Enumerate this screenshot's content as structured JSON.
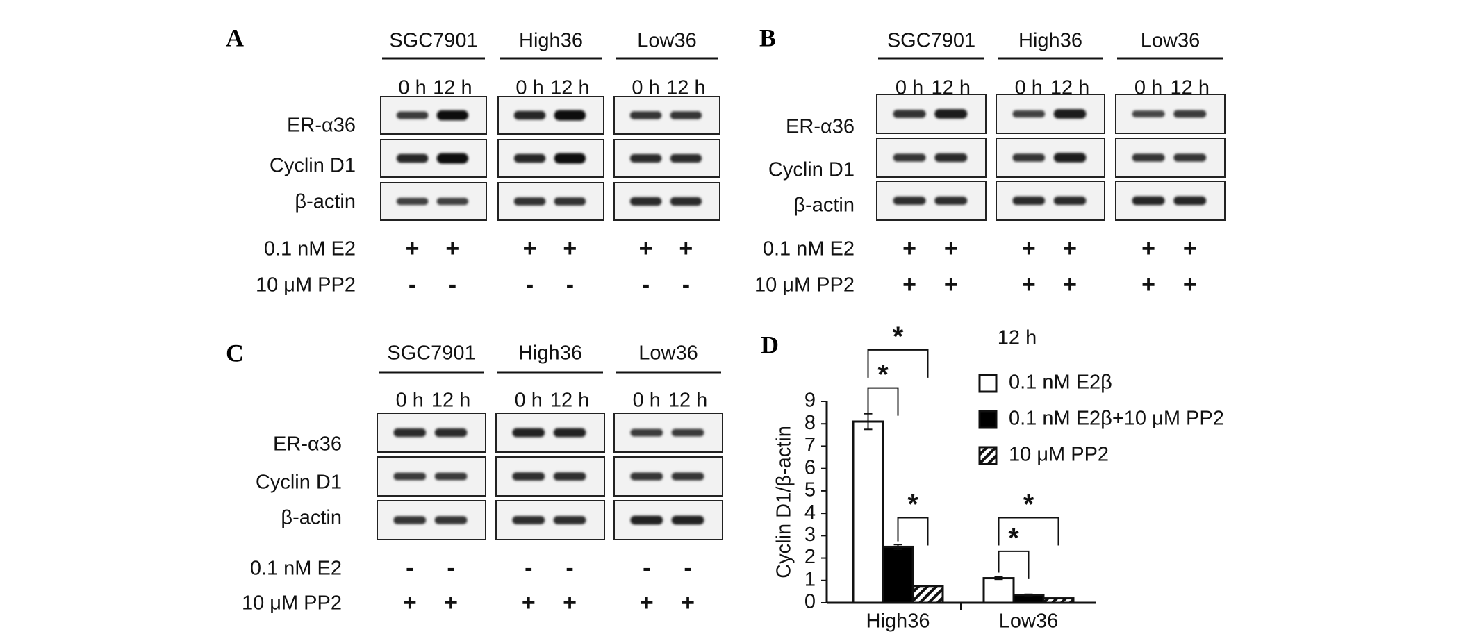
{
  "panels": [
    {
      "label": "A",
      "cells": [
        "SGC7901",
        "High36",
        "Low36"
      ],
      "times": [
        "0 h",
        "12 h"
      ],
      "rows": [
        "ER-α36",
        "Cyclin D1",
        "β-actin"
      ],
      "treatments": [
        {
          "label": "0.1 nM E2",
          "signs": [
            "+",
            "+"
          ]
        },
        {
          "label": "10 μM PP2",
          "signs": [
            "-",
            "-"
          ]
        }
      ],
      "bands": [
        [
          [
            0.55,
            0.95
          ],
          [
            0.75,
            1.0
          ],
          [
            0.5,
            0.5
          ]
        ],
        [
          [
            0.75,
            1.0
          ],
          [
            0.75,
            1.0
          ],
          [
            0.65,
            0.65
          ]
        ],
        [
          [
            0.6,
            0.6
          ],
          [
            0.7,
            0.7
          ],
          [
            0.72,
            0.72
          ]
        ]
      ]
    },
    {
      "label": "B",
      "cells": [
        "SGC7901",
        "High36",
        "Low36"
      ],
      "times": [
        "0 h",
        "12 h"
      ],
      "rows": [
        "ER-α36",
        "Cyclin D1",
        "β-actin"
      ],
      "treatments": [
        {
          "label": "0.1 nM E2",
          "signs": [
            "+",
            "+"
          ]
        },
        {
          "label": "10 μM PP2",
          "signs": [
            "+",
            "+"
          ]
        }
      ],
      "bands": [
        [
          [
            0.65,
            0.85
          ],
          [
            0.6,
            0.72
          ],
          [
            0.68,
            0.68
          ]
        ],
        [
          [
            0.5,
            0.85
          ],
          [
            0.62,
            0.85
          ],
          [
            0.7,
            0.7
          ]
        ],
        [
          [
            0.45,
            0.55
          ],
          [
            0.6,
            0.6
          ],
          [
            0.75,
            0.75
          ]
        ]
      ]
    },
    {
      "label": "C",
      "cells": [
        "SGC7901",
        "High36",
        "Low36"
      ],
      "times": [
        "0 h",
        "12 h"
      ],
      "rows": [
        "ER-α36",
        "Cyclin D1",
        "β-actin"
      ],
      "treatments": [
        {
          "label": "0.1 nM E2",
          "signs": [
            "-",
            "-"
          ]
        },
        {
          "label": "10 μM PP2",
          "signs": [
            "+",
            "+"
          ]
        }
      ],
      "bands": [
        [
          [
            0.72,
            0.72
          ],
          [
            0.55,
            0.55
          ],
          [
            0.62,
            0.62
          ]
        ],
        [
          [
            0.78,
            0.78
          ],
          [
            0.68,
            0.68
          ],
          [
            0.68,
            0.68
          ]
        ],
        [
          [
            0.55,
            0.55
          ],
          [
            0.6,
            0.6
          ],
          [
            0.78,
            0.78
          ]
        ]
      ]
    }
  ],
  "chart_data": {
    "label": "D",
    "type": "bar",
    "subtitle": "12 h",
    "ylabel": "Cyclin D1/β-actin",
    "xlabel": "",
    "ylim": [
      0,
      9
    ],
    "yticks": [
      0,
      1,
      2,
      3,
      4,
      5,
      6,
      7,
      8,
      9
    ],
    "grid": false,
    "legend_position": "top-right",
    "categories": [
      "High36",
      "Low36"
    ],
    "series": [
      {
        "name": "0.1 nM E2β",
        "values": [
          8.1,
          1.1
        ],
        "errors": [
          0.35,
          0.05
        ],
        "fill": "#ffffff"
      },
      {
        "name": "0.1 nM E2β+10 μM PP2",
        "values": [
          2.5,
          0.35
        ],
        "errors": [
          0.1,
          0.03
        ],
        "fill": "#000000"
      },
      {
        "name": "10 μM PP2",
        "values": [
          0.75,
          0.2
        ],
        "errors": [
          0,
          0
        ],
        "fill": "hatch"
      }
    ],
    "significance": [
      {
        "category": 0,
        "from": 0,
        "to": 1,
        "y": 9.6,
        "mark": "*"
      },
      {
        "category": 0,
        "from": 0,
        "to": 2,
        "y": 11.3,
        "mark": "*"
      },
      {
        "category": 0,
        "from": 1,
        "to": 2,
        "y": 3.8,
        "mark": "*"
      },
      {
        "category": 1,
        "from": 0,
        "to": 1,
        "y": 2.3,
        "mark": "*"
      },
      {
        "category": 1,
        "from": 0,
        "to": 2,
        "y": 3.8,
        "mark": "*"
      }
    ]
  }
}
